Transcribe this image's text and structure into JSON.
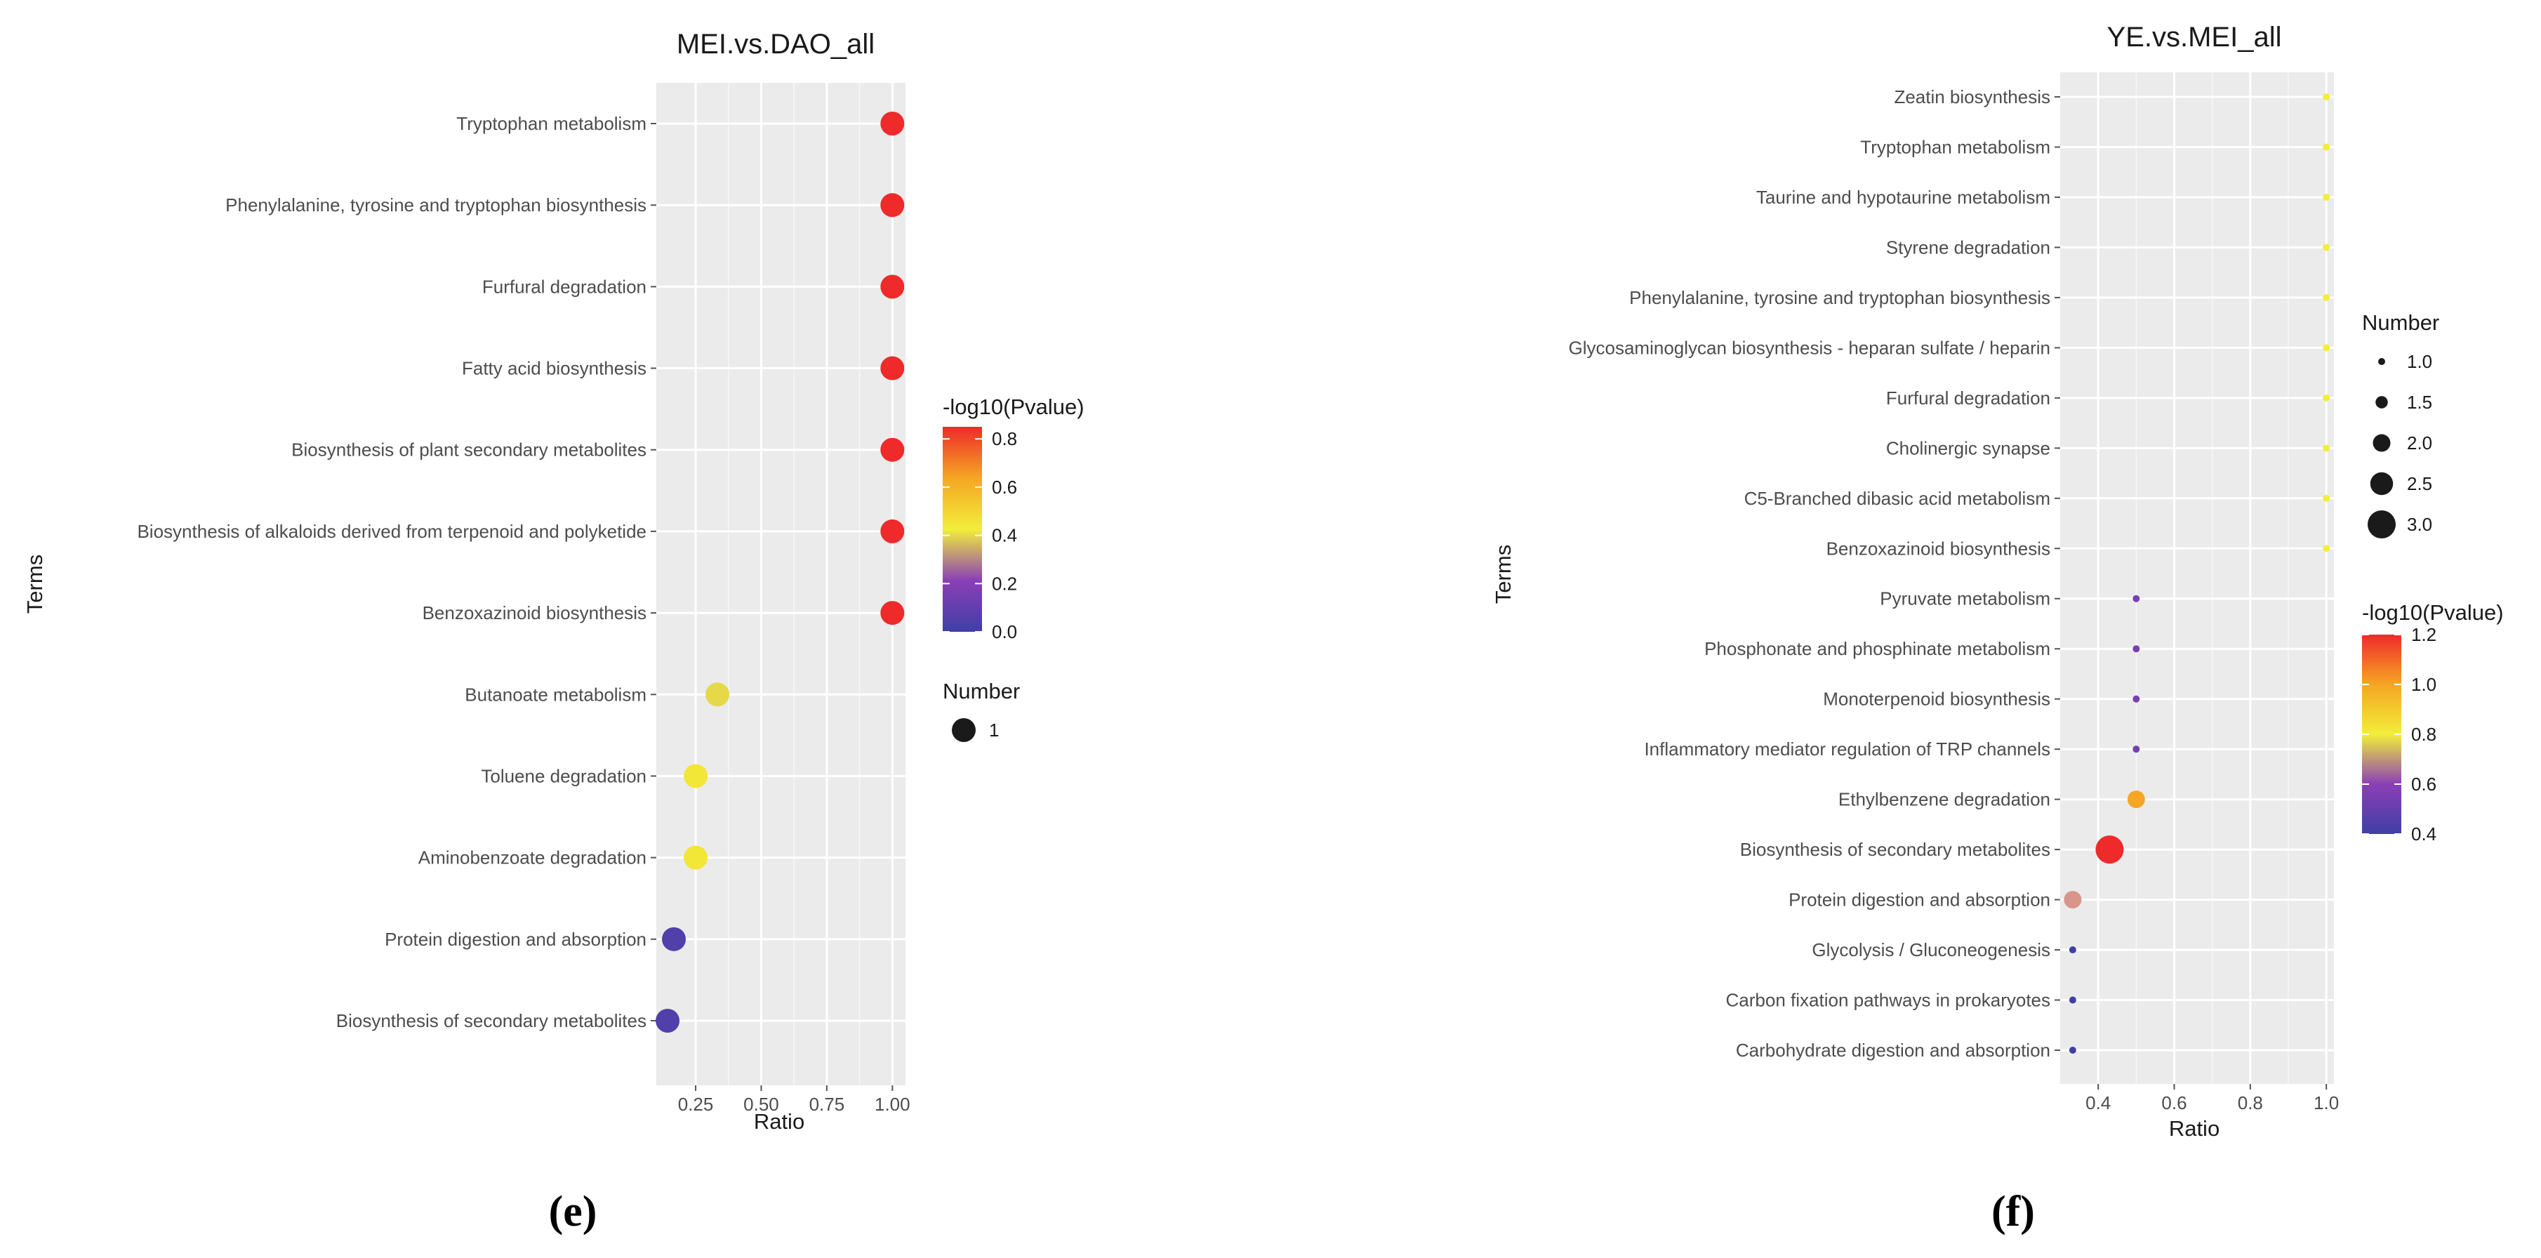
{
  "chart_data": [
    {
      "type": "scatter",
      "panel_label": "(e)",
      "title": "MEI.vs.DAO_all",
      "xlabel": "Ratio",
      "ylabel": "Terms",
      "xlim": [
        0.1,
        1.05
      ],
      "xticks": [
        0.25,
        0.5,
        0.75,
        1.0
      ],
      "xtick_labels": [
        "0.25",
        "0.50",
        "0.75",
        "1.00"
      ],
      "terms": [
        "Tryptophan metabolism",
        "Phenylalanine, tyrosine and tryptophan biosynthesis",
        "Furfural degradation",
        "Fatty acid biosynthesis",
        "Biosynthesis of plant secondary metabolites",
        "Biosynthesis of alkaloids derived from terpenoid and polyketide",
        "Benzoxazinoid biosynthesis",
        "Butanoate metabolism",
        "Toluene degradation",
        "Aminobenzoate degradation",
        "Protein digestion and absorption",
        "Biosynthesis of secondary metabolites"
      ],
      "ratio": [
        1.0,
        1.0,
        1.0,
        1.0,
        1.0,
        1.0,
        1.0,
        0.333,
        0.25,
        0.25,
        0.167,
        0.143
      ],
      "number": [
        1,
        1,
        1,
        1,
        1,
        1,
        1,
        1,
        1,
        1,
        1,
        1
      ],
      "neg_log10_pvalue": [
        0.85,
        0.85,
        0.85,
        0.85,
        0.85,
        0.85,
        0.85,
        0.4,
        0.45,
        0.45,
        0.05,
        0.05
      ],
      "color_legend": {
        "title": "-log10(Pvalue)",
        "range": [
          0.0,
          0.85
        ],
        "ticks": [
          0.0,
          0.2,
          0.4,
          0.6,
          0.8
        ],
        "tick_labels": [
          "0.0",
          "0.2",
          "0.4",
          "0.6",
          "0.8"
        ]
      },
      "size_legend": {
        "title": "Number",
        "values": [
          1
        ],
        "labels": [
          "1"
        ]
      }
    },
    {
      "type": "scatter",
      "panel_label": "(f)",
      "title": "YE.vs.MEI_all",
      "xlabel": "Ratio",
      "ylabel": "Terms",
      "xlim": [
        0.3,
        1.02
      ],
      "xticks": [
        0.4,
        0.6,
        0.8,
        1.0
      ],
      "xtick_labels": [
        "0.4",
        "0.6",
        "0.8",
        "1.0"
      ],
      "terms": [
        "Zeatin biosynthesis",
        "Tryptophan metabolism",
        "Taurine and hypotaurine metabolism",
        "Styrene degradation",
        "Phenylalanine, tyrosine and tryptophan biosynthesis",
        "Glycosaminoglycan biosynthesis - heparan sulfate / heparin",
        "Furfural degradation",
        "Cholinergic synapse",
        "C5-Branched dibasic acid metabolism",
        "Benzoxazinoid biosynthesis",
        "Pyruvate metabolism",
        "Phosphonate and phosphinate metabolism",
        "Monoterpenoid biosynthesis",
        "Inflammatory mediator regulation of TRP channels",
        "Ethylbenzene degradation",
        "Biosynthesis of secondary metabolites",
        "Protein digestion and absorption",
        "Glycolysis / Gluconeogenesis",
        "Carbon fixation pathways in prokaryotes",
        "Carbohydrate digestion and absorption"
      ],
      "ratio": [
        1.0,
        1.0,
        1.0,
        1.0,
        1.0,
        1.0,
        1.0,
        1.0,
        1.0,
        1.0,
        0.5,
        0.5,
        0.5,
        0.5,
        0.5,
        0.43,
        0.333,
        0.333,
        0.333,
        0.333
      ],
      "number": [
        1,
        1,
        1,
        1,
        1,
        1,
        1,
        1,
        1,
        1,
        1,
        1,
        1,
        1,
        2,
        3,
        2,
        1,
        1,
        1
      ],
      "neg_log10_pvalue": [
        0.8,
        0.8,
        0.8,
        0.8,
        0.8,
        0.8,
        0.8,
        0.8,
        0.8,
        0.8,
        0.55,
        0.55,
        0.55,
        0.55,
        1.0,
        1.2,
        0.72,
        0.4,
        0.4,
        0.4
      ],
      "point_colors_override": {
        "16": "#d9958a"
      },
      "color_legend": {
        "title": "-log10(Pvalue)",
        "range": [
          0.4,
          1.2
        ],
        "ticks": [
          0.4,
          0.6,
          0.8,
          1.0,
          1.2
        ],
        "tick_labels": [
          "0.4",
          "0.6",
          "0.8",
          "1.0",
          "1.2"
        ]
      },
      "size_legend": {
        "title": "Number",
        "values": [
          1.0,
          1.5,
          2.0,
          2.5,
          3.0
        ],
        "labels": [
          "1.0",
          "1.5",
          "2.0",
          "2.5",
          "3.0"
        ]
      }
    }
  ],
  "colors": {
    "panel_bg": "#ebebeb",
    "grid": "#ffffff",
    "gradient": [
      "#3f3fa6",
      "#8b3fb6",
      "#f2ee3a",
      "#f5a623",
      "#ee2a2a"
    ]
  }
}
